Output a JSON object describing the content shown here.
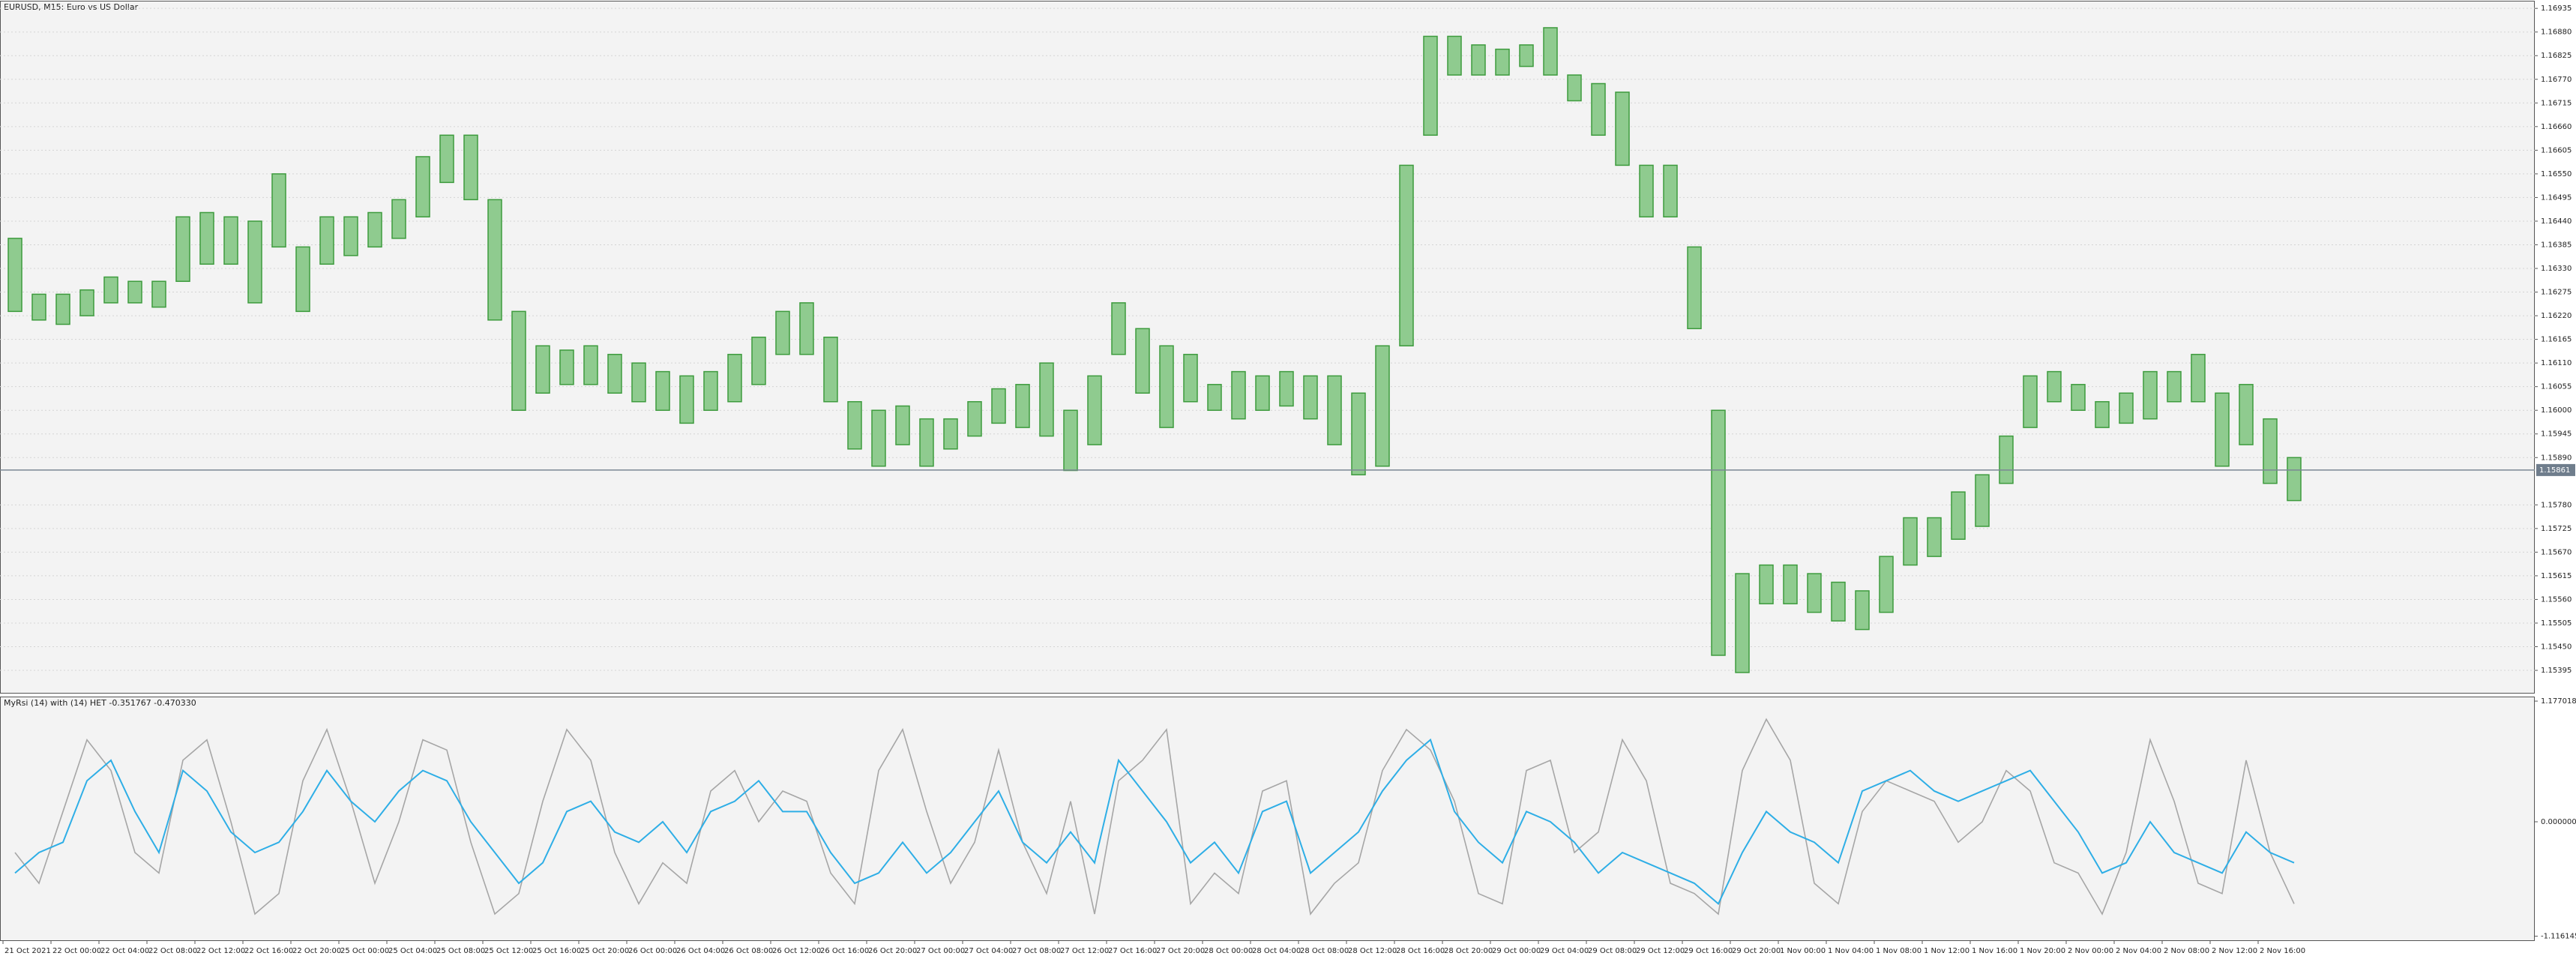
{
  "chart_data": [
    {
      "type": "range_bar",
      "title": "EURUSD, M15:  Euro vs US Dollar",
      "color": "#3d9b3d",
      "high": [
        1.164,
        1.1627,
        1.1627,
        1.1628,
        1.1631,
        1.163,
        1.163,
        1.1645,
        1.1646,
        1.1645,
        1.1644,
        1.1655,
        1.1638,
        1.1645,
        1.1645,
        1.1646,
        1.1649,
        1.1659,
        1.1664,
        1.1664,
        1.1649,
        1.1623,
        1.1615,
        1.1614,
        1.1615,
        1.1613,
        1.1611,
        1.1609,
        1.1608,
        1.1609,
        1.1613,
        1.1617,
        1.1623,
        1.1625,
        1.1617,
        1.1602,
        1.16,
        1.1601,
        1.1598,
        1.1598,
        1.1602,
        1.1605,
        1.1606,
        1.1611,
        1.16,
        1.1608,
        1.1625,
        1.1619,
        1.1615,
        1.1613,
        1.1606,
        1.1609,
        1.1608,
        1.1609,
        1.1608,
        1.1608,
        1.1604,
        1.1615,
        1.1657,
        1.1687,
        1.1687,
        1.1685,
        1.1684,
        1.1685,
        1.1689,
        1.1678,
        1.1676,
        1.1674,
        1.1657,
        1.1657,
        1.1638,
        1.16,
        1.1562,
        1.1564,
        1.1564,
        1.1562,
        1.156,
        1.1558,
        1.1566,
        1.1575,
        1.1575,
        1.1581,
        1.1585,
        1.1594,
        1.1608,
        1.1609,
        1.1606,
        1.1602,
        1.1604,
        1.1609,
        1.1609,
        1.1613,
        1.1604,
        1.1606,
        1.1598,
        1.1589
      ],
      "low": [
        1.1623,
        1.1621,
        1.162,
        1.1622,
        1.1625,
        1.1625,
        1.1624,
        1.163,
        1.1634,
        1.1634,
        1.1625,
        1.1638,
        1.1623,
        1.1634,
        1.1636,
        1.1638,
        1.164,
        1.1645,
        1.1653,
        1.1649,
        1.1621,
        1.16,
        1.1604,
        1.1606,
        1.1606,
        1.1604,
        1.1602,
        1.16,
        1.1597,
        1.16,
        1.1602,
        1.1606,
        1.1613,
        1.1613,
        1.1602,
        1.1591,
        1.1587,
        1.1592,
        1.1587,
        1.1591,
        1.1594,
        1.1597,
        1.1596,
        1.1594,
        1.1586,
        1.1592,
        1.1613,
        1.1604,
        1.1596,
        1.1602,
        1.16,
        1.1598,
        1.16,
        1.1601,
        1.1598,
        1.1592,
        1.1585,
        1.1587,
        1.1615,
        1.1664,
        1.1678,
        1.1678,
        1.1678,
        1.168,
        1.1678,
        1.1672,
        1.1664,
        1.1657,
        1.1645,
        1.1645,
        1.1619,
        1.1543,
        1.1539,
        1.1555,
        1.1555,
        1.1553,
        1.1551,
        1.1549,
        1.1553,
        1.1564,
        1.1566,
        1.157,
        1.1573,
        1.1583,
        1.1596,
        1.1602,
        1.16,
        1.1596,
        1.1597,
        1.1598,
        1.1602,
        1.1602,
        1.1587,
        1.1592,
        1.1583,
        1.1579
      ],
      "ylim": [
        1.15341,
        1.16951
      ],
      "yticks": [
        {
          "value": 1.16935,
          "label": "1.16935"
        },
        {
          "value": 1.1688,
          "label": "1.16880"
        },
        {
          "value": 1.16825,
          "label": "1.16825"
        },
        {
          "value": 1.1677,
          "label": "1.16770"
        },
        {
          "value": 1.16715,
          "label": "1.16715"
        },
        {
          "value": 1.1666,
          "label": "1.16660"
        },
        {
          "value": 1.16605,
          "label": "1.16605"
        },
        {
          "value": 1.1655,
          "label": "1.16550"
        },
        {
          "value": 1.16495,
          "label": "1.16495"
        },
        {
          "value": 1.1644,
          "label": "1.16440"
        },
        {
          "value": 1.16385,
          "label": "1.16385"
        },
        {
          "value": 1.1633,
          "label": "1.16330"
        },
        {
          "value": 1.16275,
          "label": "1.16275"
        },
        {
          "value": 1.1622,
          "label": "1.16220"
        },
        {
          "value": 1.16165,
          "label": "1.16165"
        },
        {
          "value": 1.1611,
          "label": "1.16110"
        },
        {
          "value": 1.16055,
          "label": "1.16055"
        },
        {
          "value": 1.16,
          "label": "1.16000"
        },
        {
          "value": 1.15945,
          "label": "1.15945"
        },
        {
          "value": 1.1589,
          "label": "1.15890"
        },
        {
          "value": 1.1578,
          "label": "1.15780"
        },
        {
          "value": 1.15725,
          "label": "1.15725"
        },
        {
          "value": 1.1567,
          "label": "1.15670"
        },
        {
          "value": 1.15615,
          "label": "1.15615"
        },
        {
          "value": 1.1556,
          "label": "1.15560"
        },
        {
          "value": 1.15505,
          "label": "1.15505"
        },
        {
          "value": 1.1545,
          "label": "1.15450"
        },
        {
          "value": 1.15395,
          "label": "1.15395"
        }
      ],
      "current_price": 1.15861,
      "grid": true
    },
    {
      "type": "line",
      "title": "MyRsi (14) with (14) HET -0.351767 -0.470330",
      "series": [
        {
          "color": "#a6a6a6",
          "values": [
            -0.3,
            -0.6,
            0.1,
            0.8,
            0.5,
            -0.3,
            -0.5,
            0.6,
            0.8,
            0.0,
            -0.9,
            -0.7,
            0.4,
            0.9,
            0.2,
            -0.6,
            0.0,
            0.8,
            0.7,
            -0.2,
            -0.9,
            -0.7,
            0.2,
            0.9,
            0.6,
            -0.3,
            -0.8,
            -0.4,
            -0.6,
            0.3,
            0.5,
            0.0,
            0.3,
            0.2,
            -0.5,
            -0.8,
            0.5,
            0.9,
            0.1,
            -0.6,
            -0.2,
            0.7,
            -0.2,
            -0.7,
            0.2,
            -0.9,
            0.4,
            0.6,
            0.9,
            -0.8,
            -0.5,
            -0.7,
            0.3,
            0.4,
            -0.9,
            -0.6,
            -0.4,
            0.5,
            0.9,
            0.7,
            0.2,
            -0.7,
            -0.8,
            0.5,
            0.6,
            -0.3,
            -0.1,
            0.8,
            0.4,
            -0.6,
            -0.7,
            -0.9,
            0.5,
            1.0,
            0.6,
            -0.6,
            -0.8,
            0.1,
            0.4,
            0.3,
            0.2,
            -0.2,
            0.0,
            0.5,
            0.3,
            -0.4,
            -0.5,
            -0.9,
            -0.3,
            0.8,
            0.2,
            -0.6,
            -0.7,
            0.6,
            -0.3,
            -0.8
          ]
        },
        {
          "color": "#2eaee6",
          "values": [
            -0.5,
            -0.3,
            -0.2,
            0.4,
            0.6,
            0.1,
            -0.3,
            0.5,
            0.3,
            -0.1,
            -0.3,
            -0.2,
            0.1,
            0.5,
            0.2,
            0.0,
            0.3,
            0.5,
            0.4,
            0.0,
            -0.3,
            -0.6,
            -0.4,
            0.1,
            0.2,
            -0.1,
            -0.2,
            0.0,
            -0.3,
            0.1,
            0.2,
            0.4,
            0.1,
            0.1,
            -0.3,
            -0.6,
            -0.5,
            -0.2,
            -0.5,
            -0.3,
            0.0,
            0.3,
            -0.2,
            -0.4,
            -0.1,
            -0.4,
            0.6,
            0.3,
            0.0,
            -0.4,
            -0.2,
            -0.5,
            0.1,
            0.2,
            -0.5,
            -0.3,
            -0.1,
            0.3,
            0.6,
            0.8,
            0.1,
            -0.2,
            -0.4,
            0.1,
            0.0,
            -0.2,
            -0.5,
            -0.3,
            -0.4,
            -0.5,
            -0.6,
            -0.8,
            -0.3,
            0.1,
            -0.1,
            -0.2,
            -0.4,
            0.3,
            0.4,
            0.5,
            0.3,
            0.2,
            0.3,
            0.4,
            0.5,
            0.2,
            -0.1,
            -0.5,
            -0.4,
            0.0,
            -0.3,
            -0.4,
            -0.5,
            -0.1,
            -0.3,
            -0.4
          ]
        }
      ],
      "ylim": [
        -1.163,
        1.214
      ],
      "yticks": [
        1.177018,
        {
          "value": 0,
          "label": "0.000000"
        },
        -1.116145
      ],
      "xtick_labels": [
        "21 Oct 2021",
        "22 Oct 00:00",
        "22 Oct 04:00",
        "22 Oct 08:00",
        "22 Oct 12:00",
        "22 Oct 16:00",
        "22 Oct 20:00",
        "25 Oct 00:00",
        "25 Oct 04:00",
        "25 Oct 08:00",
        "25 Oct 12:00",
        "25 Oct 16:00",
        "25 Oct 20:00",
        "26 Oct 00:00",
        "26 Oct 04:00",
        "26 Oct 08:00",
        "26 Oct 12:00",
        "26 Oct 16:00",
        "26 Oct 20:00",
        "27 Oct 00:00",
        "27 Oct 04:00",
        "27 Oct 08:00",
        "27 Oct 12:00",
        "27 Oct 16:00",
        "27 Oct 20:00",
        "28 Oct 00:00",
        "28 Oct 04:00",
        "28 Oct 08:00",
        "28 Oct 12:00",
        "28 Oct 16:00",
        "28 Oct 20:00",
        "29 Oct 00:00",
        "29 Oct 04:00",
        "29 Oct 08:00",
        "29 Oct 12:00",
        "29 Oct 16:00",
        "29 Oct 20:00",
        "1 Nov 00:00",
        "1 Nov 04:00",
        "1 Nov 08:00",
        "1 Nov 12:00",
        "1 Nov 16:00",
        "1 Nov 20:00",
        "2 Nov 00:00",
        "2 Nov 04:00",
        "2 Nov 08:00",
        "2 Nov 12:00",
        "2 Nov 16:00"
      ]
    }
  ]
}
